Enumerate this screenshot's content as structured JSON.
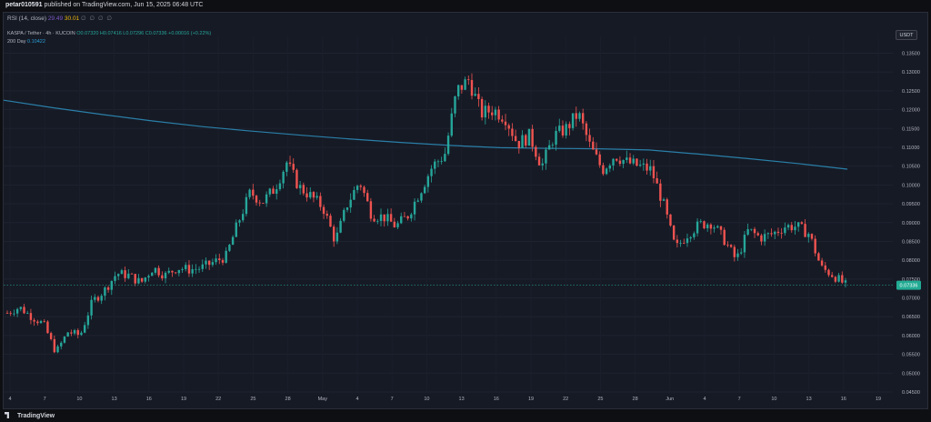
{
  "header": {
    "author": "petar010591",
    "published": "published on TradingView.com, Jun 15, 2025 06:48 UTC"
  },
  "rsi": {
    "label": "RSI (14, close)",
    "value1": "29.49",
    "value2": "30.01",
    "icons": "∅ ∅ ∅ ∅"
  },
  "legend": {
    "symbol": "KASPA / Tether · 4h · KUCOIN",
    "ohlc": "O0.07320 H0.07416 L0.07296 C0.07336 +0.00016 (+0.22%)",
    "ma_label": "200 Day",
    "ma_value": "0.10422"
  },
  "currency_button": "USDT",
  "footer_logo": "TradingView",
  "colors": {
    "up": "#26a69a",
    "down": "#ef5350",
    "ma": "#2a7fa8",
    "price_tag": "#22ab94"
  },
  "chart_data": {
    "type": "candlestick",
    "y_axis": {
      "min": 0.045,
      "max": 0.135,
      "ticks": [
        "0.13500",
        "0.13000",
        "0.12500",
        "0.12000",
        "0.11500",
        "0.11000",
        "0.10500",
        "0.10000",
        "0.09500",
        "0.09000",
        "0.08500",
        "0.08000",
        "0.07500",
        "0.07000",
        "0.06500",
        "0.06000",
        "0.05500",
        "0.05000",
        "0.04500"
      ]
    },
    "x_axis": {
      "labels": [
        "4",
        "7",
        "10",
        "13",
        "16",
        "19",
        "22",
        "25",
        "28",
        "May",
        "4",
        "7",
        "10",
        "13",
        "16",
        "19",
        "22",
        "25",
        "28",
        "Jun",
        "4",
        "7",
        "10",
        "13",
        "16",
        "19"
      ]
    },
    "last_price": "0.07336",
    "ma_200": [
      [
        0,
        0.1225
      ],
      [
        2,
        0.1205
      ],
      [
        4,
        0.1187
      ],
      [
        6,
        0.117
      ],
      [
        8,
        0.1155
      ],
      [
        10,
        0.1143
      ],
      [
        12,
        0.1132
      ],
      [
        14,
        0.1122
      ],
      [
        16,
        0.1113
      ],
      [
        18,
        0.1105
      ],
      [
        20,
        0.1099
      ],
      [
        22,
        0.1097
      ],
      [
        24,
        0.1096
      ],
      [
        26,
        0.1093
      ],
      [
        28,
        0.1082
      ],
      [
        30,
        0.107
      ],
      [
        32,
        0.1057
      ],
      [
        34,
        0.1042
      ]
    ],
    "closes": [
      [
        0,
        0.066
      ],
      [
        0.5,
        0.0675
      ],
      [
        1,
        0.065
      ],
      [
        1.5,
        0.063
      ],
      [
        2,
        0.0555
      ],
      [
        2.5,
        0.061
      ],
      [
        3,
        0.06
      ],
      [
        3.5,
        0.069
      ],
      [
        4,
        0.072
      ],
      [
        4.5,
        0.0765
      ],
      [
        5,
        0.076
      ],
      [
        5.5,
        0.074
      ],
      [
        6,
        0.078
      ],
      [
        6.5,
        0.076
      ],
      [
        7,
        0.078
      ],
      [
        7.5,
        0.0775
      ],
      [
        8,
        0.078
      ],
      [
        8.5,
        0.0795
      ],
      [
        9,
        0.081
      ],
      [
        9.5,
        0.09
      ],
      [
        10,
        0.098
      ],
      [
        10.5,
        0.0955
      ],
      [
        11,
        0.099
      ],
      [
        11.5,
        0.106
      ],
      [
        12,
        0.0995
      ],
      [
        12.5,
        0.097
      ],
      [
        13,
        0.094
      ],
      [
        13.5,
        0.085
      ],
      [
        14,
        0.095
      ],
      [
        14.5,
        0.101
      ],
      [
        15,
        0.092
      ],
      [
        15.5,
        0.0915
      ],
      [
        16,
        0.089
      ],
      [
        16.5,
        0.092
      ],
      [
        17,
        0.0985
      ],
      [
        17.5,
        0.105
      ],
      [
        18,
        0.108
      ],
      [
        18.5,
        0.125
      ],
      [
        19,
        0.128
      ],
      [
        19.5,
        0.119
      ],
      [
        20,
        0.12
      ],
      [
        20.5,
        0.118
      ],
      [
        21,
        0.111
      ],
      [
        21.5,
        0.113
      ],
      [
        22,
        0.105
      ],
      [
        22.5,
        0.113
      ],
      [
        23,
        0.115
      ],
      [
        23.5,
        0.119
      ],
      [
        24,
        0.11
      ],
      [
        24.5,
        0.104
      ],
      [
        25,
        0.108
      ],
      [
        25.5,
        0.106
      ],
      [
        26,
        0.105
      ],
      [
        26.5,
        0.104
      ],
      [
        27,
        0.095
      ],
      [
        27.5,
        0.083
      ],
      [
        28,
        0.087
      ],
      [
        28.5,
        0.0895
      ],
      [
        29,
        0.09
      ],
      [
        29.5,
        0.0855
      ],
      [
        30,
        0.08
      ],
      [
        30.5,
        0.088
      ],
      [
        31,
        0.086
      ],
      [
        31.5,
        0.087
      ],
      [
        32,
        0.089
      ],
      [
        32.5,
        0.089
      ],
      [
        33,
        0.087
      ],
      [
        33.5,
        0.078
      ],
      [
        34,
        0.076
      ],
      [
        34.5,
        0.0734
      ]
    ]
  }
}
